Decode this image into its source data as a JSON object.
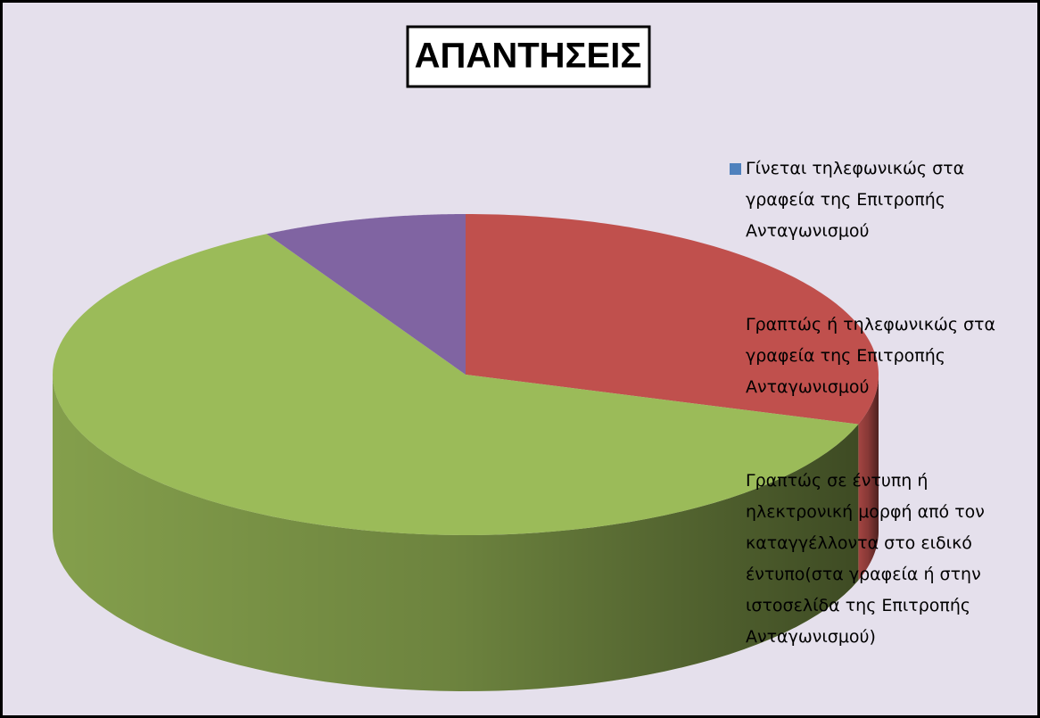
{
  "chart_data": {
    "type": "pie3d",
    "title": "ΑΠΑΝΤΗΣΕΙΣ",
    "categories": [
      "Γίνεται τηλεφωνικώς στα γραφεία της Επιτροπής Ανταγωνισμού",
      "Γραπτώς ή τηλεφωνικώς στα γραφεία της Επιτροπής Ανταγωνισμού",
      "Γραπτώς σε έντυπη ή ηλεκτρονική μορφή από τον καταγγέλλοντα στο ειδικό έντυπο(στα γραφεία ή στην ιστοσελίδα της Επιτροπής Ανταγωνισμού)",
      null
    ],
    "values": [
      0,
      30,
      62,
      8
    ],
    "colors": [
      "#4f81bd",
      "#c0504d",
      "#9bbb59",
      "#8064a2"
    ],
    "legend": "right"
  }
}
